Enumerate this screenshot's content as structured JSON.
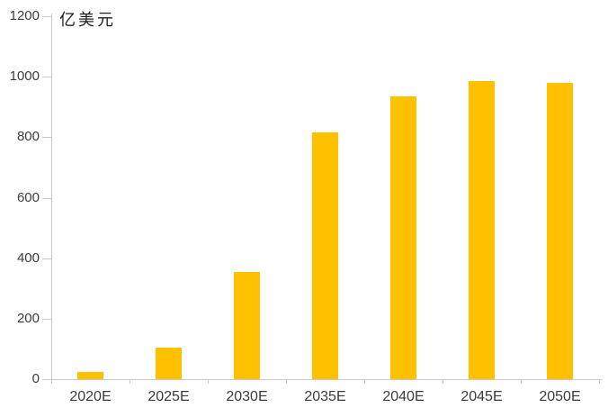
{
  "chart_data": {
    "type": "bar",
    "title": "",
    "y_axis_title": "亿美元",
    "categories": [
      "2020E",
      "2025E",
      "2030E",
      "2035E",
      "2040E",
      "2045E",
      "2050E"
    ],
    "values": [
      25,
      105,
      355,
      815,
      935,
      985,
      980
    ],
    "xlabel": "",
    "ylabel": "亿美元",
    "ylim": [
      0,
      1200
    ],
    "y_ticks": [
      0,
      200,
      400,
      600,
      800,
      1000,
      1200
    ],
    "grid": false,
    "legend": false,
    "colors": {
      "bar": "#FFC000",
      "axis": "#C9C9C9",
      "tick_text": "#3B3B3B",
      "background": "#FFFFFF"
    }
  }
}
